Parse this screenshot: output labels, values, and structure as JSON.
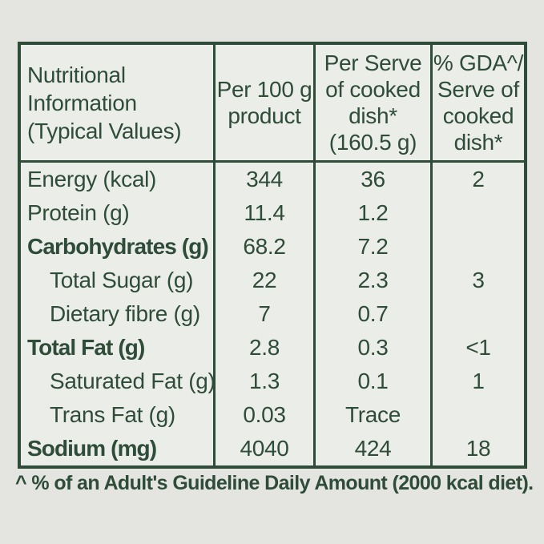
{
  "colors": {
    "page_background": "#e4e5e1",
    "table_background": "#ebede8",
    "accent_green": "#2e4c38"
  },
  "table": {
    "header": {
      "col1": "Nutritional\nInformation\n(Typical Values)",
      "col2": "Per 100 g\nproduct",
      "col3": "Per Serve\nof cooked\ndish*\n(160.5 g)",
      "col4": "% GDA^/\nServe of\ncooked\ndish*"
    },
    "rows": [
      {
        "label": "Energy (kcal)",
        "per_100g": "344",
        "per_serve": "36",
        "gda": "2"
      },
      {
        "label": "Protein (g)",
        "per_100g": "11.4",
        "per_serve": "1.2",
        "gda": ""
      },
      {
        "label": "Carbohydrates (g)",
        "per_100g": "68.2",
        "per_serve": "7.2",
        "gda": ""
      },
      {
        "label": "Total Sugar (g)",
        "per_100g": "22",
        "per_serve": "2.3",
        "gda": "3"
      },
      {
        "label": "Dietary fibre (g)",
        "per_100g": "7",
        "per_serve": "0.7",
        "gda": ""
      },
      {
        "label": "Total Fat (g)",
        "per_100g": "2.8",
        "per_serve": "0.3",
        "gda": "<1"
      },
      {
        "label": "Saturated Fat (g)",
        "per_100g": "1.3",
        "per_serve": "0.1",
        "gda": "1"
      },
      {
        "label": "Trans Fat (g)",
        "per_100g": "0.03",
        "per_serve": "Trace",
        "gda": ""
      },
      {
        "label": "Sodium (mg)",
        "per_100g": "4040",
        "per_serve": "424",
        "gda": "18"
      }
    ]
  },
  "footnote": "^ % of an Adult's Guideline Daily Amount (2000 kcal diet)."
}
